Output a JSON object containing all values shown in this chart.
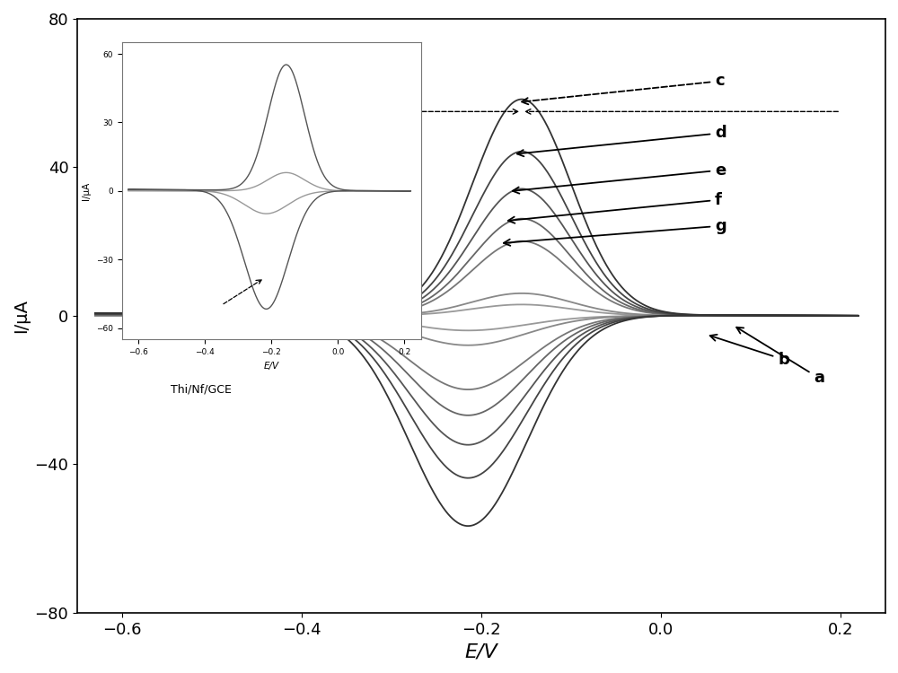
{
  "xlim": [
    -0.65,
    0.25
  ],
  "ylim": [
    -80,
    80
  ],
  "xlabel": "E/V",
  "ylabel": "I/μA",
  "xticks": [
    -0.6,
    -0.4,
    -0.2,
    0.0,
    0.2
  ],
  "yticks": [
    -80,
    -40,
    0,
    40,
    80
  ],
  "curves": [
    {
      "label": "a",
      "i_anodic": 3,
      "i_cathodic": -4,
      "color": "#999999"
    },
    {
      "label": "b",
      "i_anodic": 6,
      "i_cathodic": -8,
      "color": "#888888"
    },
    {
      "label": "g",
      "i_anodic": 20,
      "i_cathodic": -20,
      "color": "#777777"
    },
    {
      "label": "f",
      "i_anodic": 26,
      "i_cathodic": -27,
      "color": "#666666"
    },
    {
      "label": "e",
      "i_anodic": 34,
      "i_cathodic": -35,
      "color": "#555555"
    },
    {
      "label": "d",
      "i_anodic": 44,
      "i_cathodic": -44,
      "color": "#444444"
    },
    {
      "label": "c",
      "i_anodic": 58,
      "i_cathodic": -57,
      "color": "#333333"
    }
  ],
  "inset_curves": [
    {
      "i_anodic": 8,
      "i_cathodic": -10,
      "color": "#999999"
    },
    {
      "i_anodic": 55,
      "i_cathodic": -52,
      "color": "#555555"
    }
  ],
  "inset_xticks": [
    -0.6,
    -0.4,
    -0.2,
    0.0,
    0.2
  ],
  "inset_yticks": [
    -60,
    -30,
    0,
    30,
    60
  ],
  "inset_label": "Thi/Nf/GCE"
}
